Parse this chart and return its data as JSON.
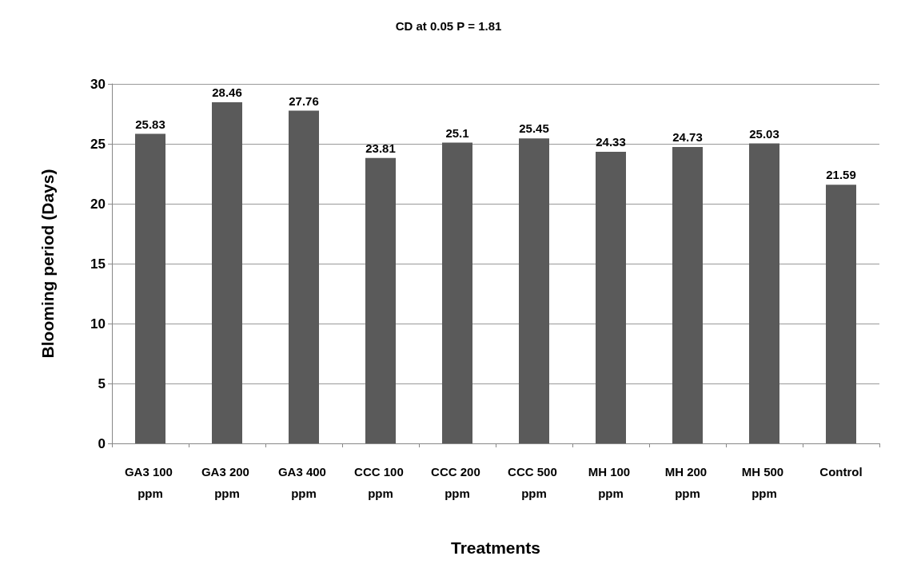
{
  "chart_data": {
    "type": "bar",
    "title": "CD at 0.05 P = 1.81",
    "xlabel": "Treatments",
    "ylabel": "Blooming period (Days)",
    "categories": [
      "GA3 100 ppm",
      "GA3 200 ppm",
      "GA3 400 ppm",
      "CCC 100 ppm",
      "CCC 200 ppm",
      "CCC 500 ppm",
      "MH 100 ppm",
      "MH 200 ppm",
      "MH 500 ppm",
      "Control"
    ],
    "values": [
      25.83,
      28.46,
      27.76,
      23.81,
      25.1,
      25.45,
      24.33,
      24.73,
      25.03,
      21.59
    ],
    "color": "#5a5a5a",
    "ylim": [
      0,
      30
    ],
    "yticks": [
      0,
      5,
      10,
      15,
      20,
      25,
      30
    ],
    "grid": "y",
    "data_labels": true
  }
}
